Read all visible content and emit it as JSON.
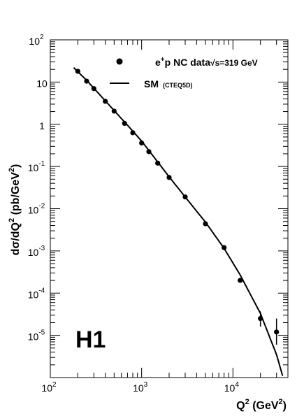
{
  "chart_data": {
    "type": "scatter",
    "title": "",
    "xlabel": {
      "base": "Q",
      "sup": "2",
      "unit_open": " (GeV",
      "unit_sup": "2",
      "unit_close": ")"
    },
    "ylabel": {
      "a": "dσ/dQ",
      "a_sup": "2",
      "b": " (pb/GeV",
      "b_sup": "2",
      "c": ")"
    },
    "xscale": "log",
    "yscale": "log",
    "xlim": [
      100,
      40000
    ],
    "ylim": [
      1e-06,
      100
    ],
    "x_ticks": [
      {
        "value": 100,
        "base": "10",
        "exp": "2"
      },
      {
        "value": 1000,
        "base": "10",
        "exp": "3"
      },
      {
        "value": 10000,
        "base": "10",
        "exp": "4"
      }
    ],
    "y_ticks": [
      {
        "value": 100,
        "base": "10",
        "exp": "2"
      },
      {
        "value": 10,
        "base": "10",
        "exp": ""
      },
      {
        "value": 1,
        "base": "1",
        "exp": ""
      },
      {
        "value": 0.1,
        "base": "10",
        "exp": "-1"
      },
      {
        "value": 0.01,
        "base": "10",
        "exp": "-2"
      },
      {
        "value": 0.001,
        "base": "10",
        "exp": "-3"
      },
      {
        "value": 0.0001,
        "base": "10",
        "exp": "-4"
      },
      {
        "value": 1e-05,
        "base": "10",
        "exp": "-5"
      }
    ],
    "grid": false,
    "legend_position": "top-right",
    "legend": [
      {
        "kind": "marker",
        "label": "e",
        "label_sup": "+",
        "label_rest": "p NC data",
        "note": "√s=319 GeV"
      },
      {
        "kind": "line",
        "label": "SM",
        "note": "(CTEQ5D)"
      }
    ],
    "experiment_label": "H1",
    "series": [
      {
        "name": "e+p NC data",
        "kind": "points",
        "x": [
          200,
          250,
          300,
          400,
          500,
          650,
          800,
          1000,
          1200,
          1500,
          2000,
          3000,
          5000,
          8000,
          12000,
          20000,
          30000
        ],
        "y": [
          18,
          10.5,
          7,
          3.5,
          2.05,
          1.05,
          0.63,
          0.36,
          0.225,
          0.12,
          0.055,
          0.019,
          0.0044,
          0.0012,
          0.0002,
          2.5e-05,
          1.2e-05
        ],
        "y_err_low": [
          0,
          0,
          0,
          0,
          0,
          0,
          0,
          0,
          0,
          0,
          0,
          0,
          0,
          0,
          0,
          9e-06,
          6e-06
        ],
        "y_err_high": [
          0,
          0,
          0,
          0,
          0,
          0,
          0,
          0,
          0,
          0,
          0,
          0,
          0,
          0,
          0,
          1.2e-05,
          1.3e-05
        ]
      },
      {
        "name": "SM",
        "kind": "line",
        "x": [
          180,
          250,
          400,
          700,
          1000,
          2000,
          3000,
          5000,
          8000,
          12000,
          20000,
          30000,
          35000
        ],
        "y": [
          22,
          11,
          3.6,
          0.95,
          0.4,
          0.057,
          0.019,
          0.0048,
          0.00115,
          0.00027,
          3.3e-05,
          3.5e-06,
          1.1e-06
        ]
      }
    ]
  }
}
